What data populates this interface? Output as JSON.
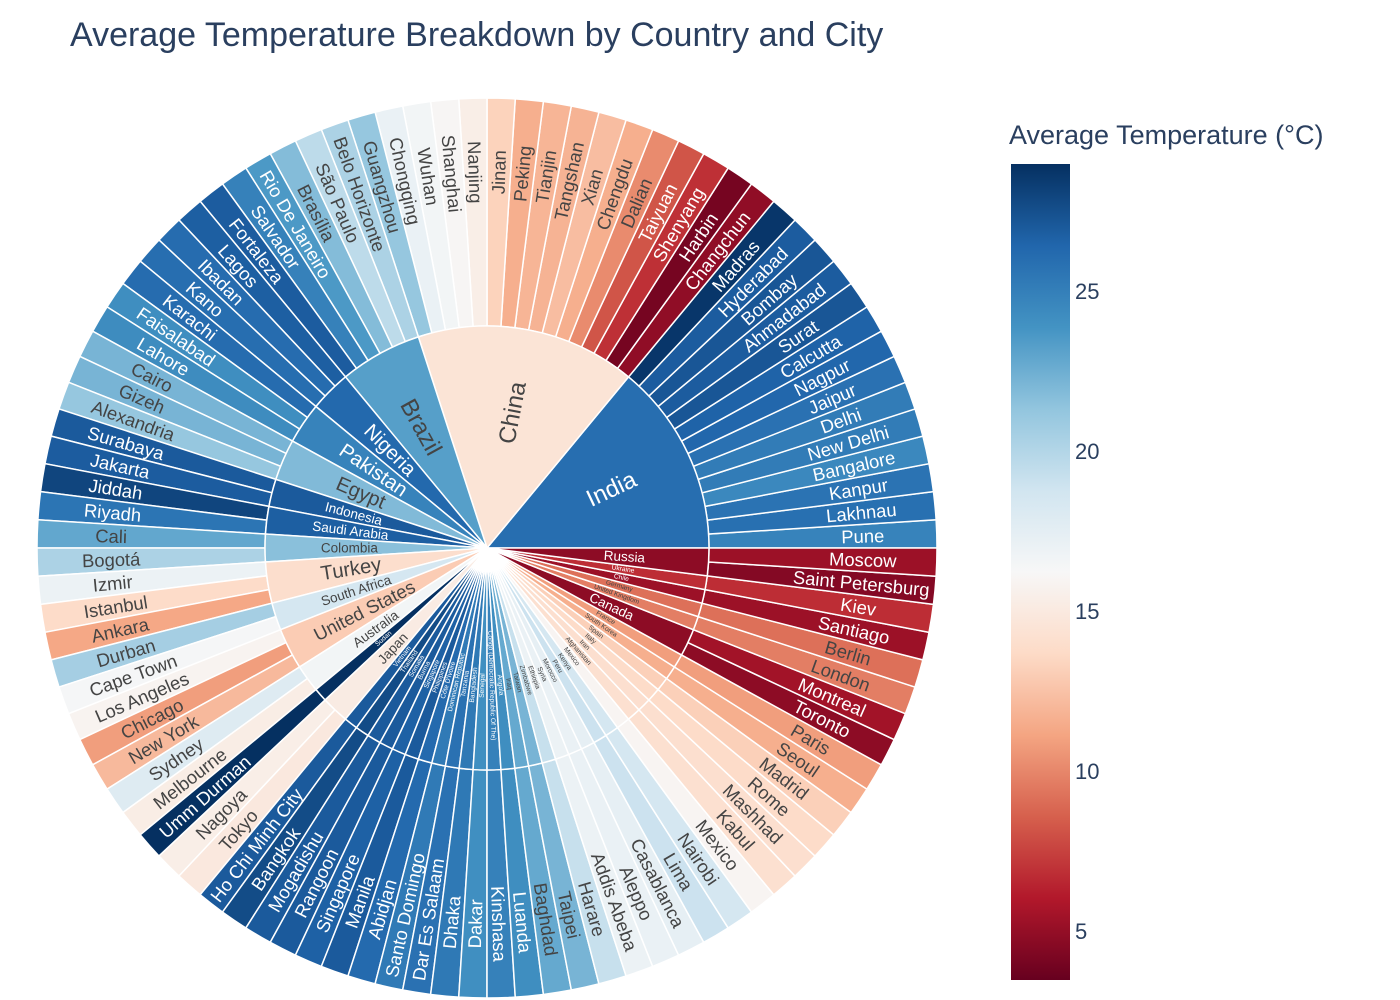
{
  "title": "Average Temperature Breakdown by Country and City",
  "chart_data": {
    "type": "sunburst",
    "title": "Average Temperature Breakdown by Country and City",
    "colorbar": {
      "title": "Average Temperature (°C)",
      "ticks": [
        5,
        10,
        15,
        20,
        25
      ],
      "range": [
        3.5,
        29.0
      ],
      "colorscale": [
        "#67001f",
        "#b2182b",
        "#d6604d",
        "#f4a582",
        "#fddbc7",
        "#f7f7f7",
        "#d1e5f0",
        "#92c5de",
        "#4393c3",
        "#2166ac",
        "#053061"
      ]
    },
    "countries": [
      {
        "name": "India",
        "temp": 26.0,
        "cities": [
          {
            "name": "Pune",
            "temp": 24.8
          },
          {
            "name": "Lakhnau",
            "temp": 25.9
          },
          {
            "name": "Kanpur",
            "temp": 25.7
          },
          {
            "name": "Bangalore",
            "temp": 24.5
          },
          {
            "name": "New Delhi",
            "temp": 25.2
          },
          {
            "name": "Delhi",
            "temp": 25.2
          },
          {
            "name": "Jaipur",
            "temp": 25.8
          },
          {
            "name": "Nagpur",
            "temp": 26.4
          },
          {
            "name": "Calcutta",
            "temp": 26.6
          },
          {
            "name": "Surat",
            "temp": 27.2
          },
          {
            "name": "Ahmadabad",
            "temp": 26.9
          },
          {
            "name": "Bombay",
            "temp": 27.2
          },
          {
            "name": "Hyderabad",
            "temp": 26.9
          },
          {
            "name": "Madras",
            "temp": 28.7
          }
        ]
      },
      {
        "name": "China",
        "temp": 14.5,
        "cities": [
          {
            "name": "Changchun",
            "temp": 4.9
          },
          {
            "name": "Harbin",
            "temp": 4.0
          },
          {
            "name": "Shenyang",
            "temp": 6.9
          },
          {
            "name": "Taiyuan",
            "temp": 8.2
          },
          {
            "name": "Dalian",
            "temp": 10.2
          },
          {
            "name": "Chengdu",
            "temp": 11.6
          },
          {
            "name": "Xian",
            "temp": 12.3
          },
          {
            "name": "Tangshan",
            "temp": 11.8
          },
          {
            "name": "Tianjin",
            "temp": 11.9
          },
          {
            "name": "Peking",
            "temp": 11.6
          },
          {
            "name": "Jinan",
            "temp": 13.3
          },
          {
            "name": "Nanjing",
            "temp": 15.4
          },
          {
            "name": "Shanghai",
            "temp": 16.1
          },
          {
            "name": "Wuhan",
            "temp": 16.6
          },
          {
            "name": "Chongqing",
            "temp": 17.1
          },
          {
            "name": "Guangzhou",
            "temp": 21.2
          }
        ]
      },
      {
        "name": "Brazil",
        "temp": 23.3,
        "cities": [
          {
            "name": "Belo Horizonte",
            "temp": 20.3
          },
          {
            "name": "São Paulo",
            "temp": 19.6
          },
          {
            "name": "Brasília",
            "temp": 21.8
          },
          {
            "name": "Rio De Janeiro",
            "temp": 23.6
          },
          {
            "name": "Salvador",
            "temp": 24.9
          },
          {
            "name": "Fortaleza",
            "temp": 26.9
          }
        ]
      },
      {
        "name": "Nigeria",
        "temp": 26.3,
        "cities": [
          {
            "name": "Lagos",
            "temp": 26.8
          },
          {
            "name": "Ibadan",
            "temp": 26.1
          },
          {
            "name": "Kano",
            "temp": 26.0
          }
        ]
      },
      {
        "name": "Pakistan",
        "temp": 24.8,
        "cities": [
          {
            "name": "Karachi",
            "temp": 26.1
          },
          {
            "name": "Faisalabad",
            "temp": 24.2
          },
          {
            "name": "Lahore",
            "temp": 24.3
          }
        ]
      },
      {
        "name": "Egypt",
        "temp": 21.9,
        "cities": [
          {
            "name": "Cairo",
            "temp": 22.2
          },
          {
            "name": "Gizeh",
            "temp": 22.2
          },
          {
            "name": "Alexandria",
            "temp": 21.2
          }
        ]
      },
      {
        "name": "Indonesia",
        "temp": 27.0,
        "cities": [
          {
            "name": "Surabaya",
            "temp": 27.0
          },
          {
            "name": "Jakarta",
            "temp": 26.9
          }
        ]
      },
      {
        "name": "Saudi Arabia",
        "temp": 26.8,
        "cities": [
          {
            "name": "Jiddah",
            "temp": 28.0
          },
          {
            "name": "Riyadh",
            "temp": 25.6
          }
        ]
      },
      {
        "name": "Colombia",
        "temp": 21.6,
        "cities": [
          {
            "name": "Cali",
            "temp": 22.9
          },
          {
            "name": "Bogotá",
            "temp": 20.3
          }
        ]
      },
      {
        "name": "Turkey",
        "temp": 14.0,
        "cities": [
          {
            "name": "Izmir",
            "temp": 17.0
          },
          {
            "name": "Istanbul",
            "temp": 13.8
          },
          {
            "name": "Ankara",
            "temp": 11.3
          }
        ]
      },
      {
        "name": "South Africa",
        "temp": 18.5,
        "cities": [
          {
            "name": "Durban",
            "temp": 20.6
          },
          {
            "name": "Cape Town",
            "temp": 16.4
          }
        ]
      },
      {
        "name": "United States",
        "temp": 13.0,
        "cities": [
          {
            "name": "Los Angeles",
            "temp": 15.9
          },
          {
            "name": "Chicago",
            "temp": 10.9
          },
          {
            "name": "New York",
            "temp": 12.1
          }
        ]
      },
      {
        "name": "Australia",
        "temp": 16.6,
        "cities": [
          {
            "name": "Sydney",
            "temp": 17.9
          },
          {
            "name": "Melbourne",
            "temp": 15.3
          }
        ]
      },
      {
        "name": "Sudan",
        "temp": 29.0,
        "cities": [
          {
            "name": "Umm Durman",
            "temp": 29.0
          }
        ]
      },
      {
        "name": "Japan",
        "temp": 15.2,
        "cities": [
          {
            "name": "Nagoya",
            "temp": 15.4
          },
          {
            "name": "Tokyo",
            "temp": 14.9
          }
        ]
      },
      {
        "name": "Vietnam",
        "temp": 27.0,
        "cities": [
          {
            "name": "Ho Chi Minh City",
            "temp": 27.0
          }
        ]
      },
      {
        "name": "Thailand",
        "temp": 27.7,
        "cities": [
          {
            "name": "Bangkok",
            "temp": 27.7
          }
        ]
      },
      {
        "name": "Somalia",
        "temp": 27.0,
        "cities": [
          {
            "name": "Mogadishu",
            "temp": 27.0
          }
        ]
      },
      {
        "name": "Burma",
        "temp": 27.0,
        "cities": [
          {
            "name": "Rangoon",
            "temp": 27.0
          }
        ]
      },
      {
        "name": "Singapore",
        "temp": 26.7,
        "cities": [
          {
            "name": "Singapore",
            "temp": 26.7
          }
        ]
      },
      {
        "name": "Philippines",
        "temp": 27.0,
        "cities": [
          {
            "name": "Manila",
            "temp": 27.0
          }
        ]
      },
      {
        "name": "Côte D'Ivoire",
        "temp": 26.2,
        "cities": [
          {
            "name": "Abidjan",
            "temp": 26.2
          }
        ]
      },
      {
        "name": "Dominican Republic",
        "temp": 25.3,
        "cities": [
          {
            "name": "Santo Domingo",
            "temp": 25.3
          }
        ]
      },
      {
        "name": "Tanzania",
        "temp": 25.8,
        "cities": [
          {
            "name": "Dar Es Salaam",
            "temp": 25.8
          }
        ]
      },
      {
        "name": "Bangladesh",
        "temp": 25.4,
        "cities": [
          {
            "name": "Dhaka",
            "temp": 25.4
          }
        ]
      },
      {
        "name": "Senegal",
        "temp": 24.1,
        "cities": [
          {
            "name": "Dakar",
            "temp": 24.1
          }
        ]
      },
      {
        "name": "Congo (Democratic Republic Of The)",
        "temp": 24.9,
        "cities": [
          {
            "name": "Kinshasa",
            "temp": 24.9
          }
        ]
      },
      {
        "name": "Angola",
        "temp": 24.2,
        "cities": [
          {
            "name": "Luanda",
            "temp": 24.2
          }
        ]
      },
      {
        "name": "Iraq",
        "temp": 22.8,
        "cities": [
          {
            "name": "Baghdad",
            "temp": 22.8
          }
        ]
      },
      {
        "name": "Taiwan",
        "temp": 22.2,
        "cities": [
          {
            "name": "Taipei",
            "temp": 22.2
          }
        ]
      },
      {
        "name": "Zimbabwe",
        "temp": 19.2,
        "cities": [
          {
            "name": "Harare",
            "temp": 19.2
          }
        ]
      },
      {
        "name": "Ethiopia",
        "temp": 17.0,
        "cities": [
          {
            "name": "Addis Abeba",
            "temp": 17.0
          }
        ]
      },
      {
        "name": "Syria",
        "temp": 17.1,
        "cities": [
          {
            "name": "Aleppo",
            "temp": 17.1
          }
        ]
      },
      {
        "name": "Morocco",
        "temp": 17.4,
        "cities": [
          {
            "name": "Casablanca",
            "temp": 17.4
          }
        ]
      },
      {
        "name": "Peru",
        "temp": 19.0,
        "cities": [
          {
            "name": "Lima",
            "temp": 19.0
          }
        ]
      },
      {
        "name": "Kenya",
        "temp": 18.5,
        "cities": [
          {
            "name": "Nairobi",
            "temp": 18.5
          }
        ]
      },
      {
        "name": "Mexico",
        "temp": 16.0,
        "cities": [
          {
            "name": "Mexico",
            "temp": 16.0
          }
        ]
      },
      {
        "name": "Afghanistan",
        "temp": 14.2,
        "cities": [
          {
            "name": "Kabul",
            "temp": 14.2
          }
        ]
      },
      {
        "name": "Iran",
        "temp": 14.1,
        "cities": [
          {
            "name": "Mashhad",
            "temp": 14.1
          }
        ]
      },
      {
        "name": "Italy",
        "temp": 13.8,
        "cities": [
          {
            "name": "Rome",
            "temp": 13.8
          }
        ]
      },
      {
        "name": "Spain",
        "temp": 13.2,
        "cities": [
          {
            "name": "Madrid",
            "temp": 13.2
          }
        ]
      },
      {
        "name": "South Korea",
        "temp": 11.6,
        "cities": [
          {
            "name": "Seoul",
            "temp": 11.6
          }
        ]
      },
      {
        "name": "France",
        "temp": 10.9,
        "cities": [
          {
            "name": "Paris",
            "temp": 10.9
          }
        ]
      },
      {
        "name": "Canada",
        "temp": 4.8,
        "cities": [
          {
            "name": "Toronto",
            "temp": 4.8
          },
          {
            "name": "Montreal",
            "temp": 5.5
          }
        ]
      },
      {
        "name": "United Kingdom",
        "temp": 9.7,
        "cities": [
          {
            "name": "London",
            "temp": 9.7
          }
        ]
      },
      {
        "name": "Germany",
        "temp": 9.2,
        "cities": [
          {
            "name": "Berlin",
            "temp": 9.2
          }
        ]
      },
      {
        "name": "Chile",
        "temp": 5.3,
        "cities": [
          {
            "name": "Santiago",
            "temp": 5.3
          }
        ]
      },
      {
        "name": "Ukraine",
        "temp": 6.8,
        "cities": [
          {
            "name": "Kiev",
            "temp": 6.8
          }
        ]
      },
      {
        "name": "Russia",
        "temp": 4.8,
        "cities": [
          {
            "name": "Saint Petersburg",
            "temp": 4.5
          },
          {
            "name": "Moscow",
            "temp": 5.3
          }
        ]
      }
    ]
  }
}
